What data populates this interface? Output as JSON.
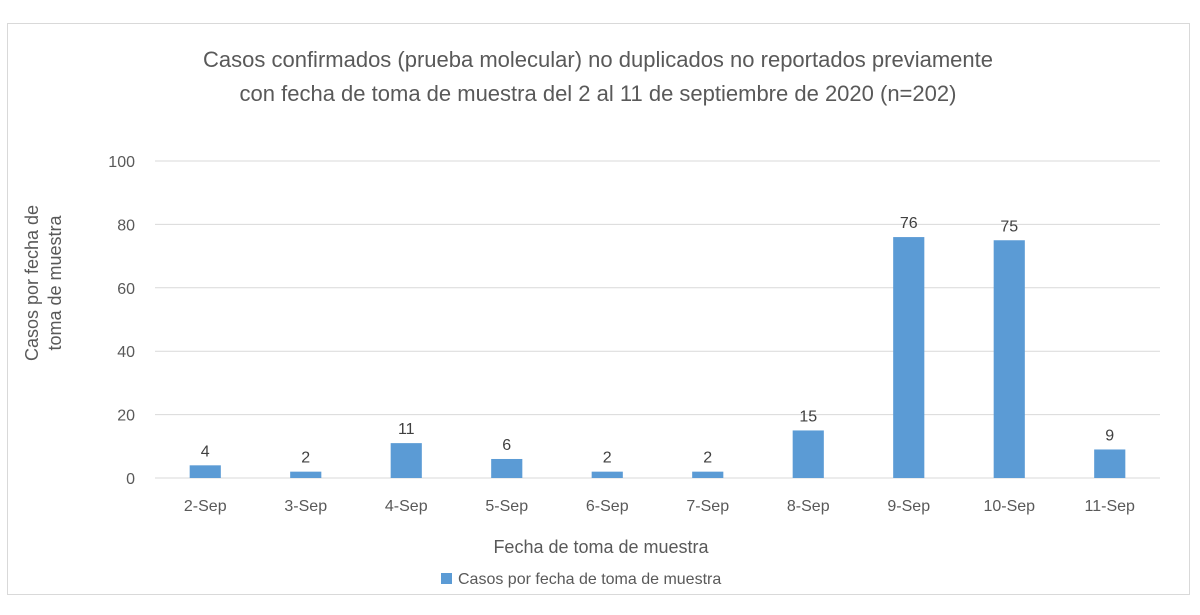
{
  "colors": {
    "bar": "#5b9bd5",
    "grid": "#d9d9d9",
    "text": "#595959",
    "data_label": "#404040"
  },
  "chart_data": {
    "type": "bar",
    "title": [
      "Casos confirmados (prueba molecular) no duplicados no reportados previamente",
      "con fecha de toma de muestra del 2 al 11 de septiembre de 2020 (n=202)"
    ],
    "xlabel": "Fecha de toma de muestra",
    "ylabel": [
      "Casos por fecha de",
      "toma de muestra"
    ],
    "categories": [
      "2-Sep",
      "3-Sep",
      "4-Sep",
      "5-Sep",
      "6-Sep",
      "7-Sep",
      "8-Sep",
      "9-Sep",
      "10-Sep",
      "11-Sep"
    ],
    "series": [
      {
        "name": "Casos por fecha de toma de muestra",
        "values": [
          4,
          2,
          11,
          6,
          2,
          2,
          15,
          76,
          75,
          9
        ]
      }
    ],
    "ylim": [
      0,
      100
    ],
    "yticks": [
      0,
      20,
      40,
      60,
      80,
      100
    ],
    "grid": true,
    "data_labels": true,
    "legend_position": "bottom"
  }
}
